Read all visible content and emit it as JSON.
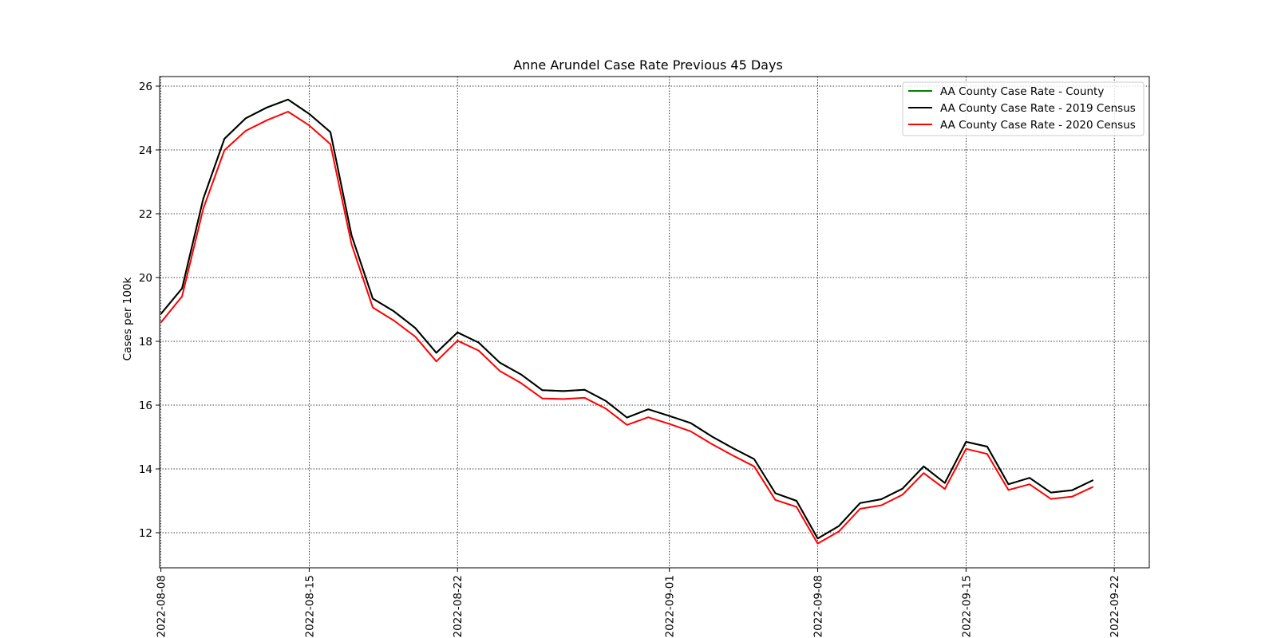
{
  "chart_data": {
    "type": "line",
    "title": "Anne Arundel Case Rate Previous 45 Days",
    "xlabel": "",
    "ylabel": "Cases per 100k",
    "x_ticks": [
      "2022-08-08",
      "2022-08-15",
      "2022-08-22",
      "2022-09-01",
      "2022-09-08",
      "2022-09-15",
      "2022-09-22"
    ],
    "y_ticks": [
      "12",
      "14",
      "16",
      "18",
      "20",
      "22",
      "24",
      "26"
    ],
    "ylim": [
      10.9,
      26.3
    ],
    "xlim": [
      "2022-08-08",
      "2022-09-23"
    ],
    "grid": true,
    "legend_position": "top-right",
    "x": [
      "2022-08-08",
      "2022-08-09",
      "2022-08-10",
      "2022-08-11",
      "2022-08-12",
      "2022-08-13",
      "2022-08-14",
      "2022-08-15",
      "2022-08-16",
      "2022-08-17",
      "2022-08-18",
      "2022-08-19",
      "2022-08-20",
      "2022-08-21",
      "2022-08-22",
      "2022-08-23",
      "2022-08-24",
      "2022-08-25",
      "2022-08-26",
      "2022-08-27",
      "2022-08-28",
      "2022-08-29",
      "2022-08-30",
      "2022-08-31",
      "2022-09-01",
      "2022-09-02",
      "2022-09-03",
      "2022-09-04",
      "2022-09-05",
      "2022-09-06",
      "2022-09-07",
      "2022-09-08",
      "2022-09-09",
      "2022-09-10",
      "2022-09-11",
      "2022-09-12",
      "2022-09-13",
      "2022-09-14",
      "2022-09-15",
      "2022-09-16",
      "2022-09-17",
      "2022-09-18",
      "2022-09-19",
      "2022-09-20",
      "2022-09-21"
    ],
    "series": [
      {
        "name": "AA County Case Rate - County",
        "color": "#008000",
        "values": [
          18.86,
          19.66,
          22.47,
          24.35,
          24.99,
          25.33,
          25.58,
          25.13,
          24.56,
          21.32,
          19.34,
          18.94,
          18.42,
          17.64,
          18.28,
          17.96,
          17.33,
          16.96,
          16.47,
          16.44,
          16.48,
          16.13,
          15.61,
          15.87,
          15.66,
          15.44,
          15.02,
          14.65,
          14.31,
          13.24,
          13.0,
          11.82,
          12.21,
          12.93,
          13.05,
          13.38,
          14.08,
          13.56,
          14.85,
          14.7,
          13.52,
          13.72,
          13.26,
          13.33,
          13.65
        ]
      },
      {
        "name": "AA County Case Rate - 2019 Census",
        "color": "#000000",
        "values": [
          18.86,
          19.66,
          22.47,
          24.35,
          24.99,
          25.33,
          25.58,
          25.13,
          24.56,
          21.32,
          19.34,
          18.94,
          18.42,
          17.64,
          18.28,
          17.96,
          17.33,
          16.96,
          16.47,
          16.44,
          16.48,
          16.13,
          15.61,
          15.87,
          15.66,
          15.44,
          15.02,
          14.65,
          14.31,
          13.24,
          13.0,
          11.82,
          12.21,
          12.93,
          13.05,
          13.38,
          14.08,
          13.56,
          14.85,
          14.7,
          13.52,
          13.72,
          13.26,
          13.33,
          13.65
        ]
      },
      {
        "name": "AA County Case Rate - 2020 Census",
        "color": "#ff0000",
        "values": [
          18.59,
          19.41,
          22.16,
          23.99,
          24.6,
          24.93,
          25.2,
          24.77,
          24.18,
          21.04,
          19.06,
          18.65,
          18.15,
          17.37,
          18.02,
          17.71,
          17.07,
          16.69,
          16.21,
          16.19,
          16.23,
          15.89,
          15.38,
          15.62,
          15.41,
          15.18,
          14.78,
          14.42,
          14.08,
          13.03,
          12.81,
          11.66,
          12.04,
          12.75,
          12.86,
          13.19,
          13.87,
          13.37,
          14.63,
          14.47,
          13.34,
          13.52,
          13.06,
          13.13,
          13.44
        ]
      }
    ]
  }
}
